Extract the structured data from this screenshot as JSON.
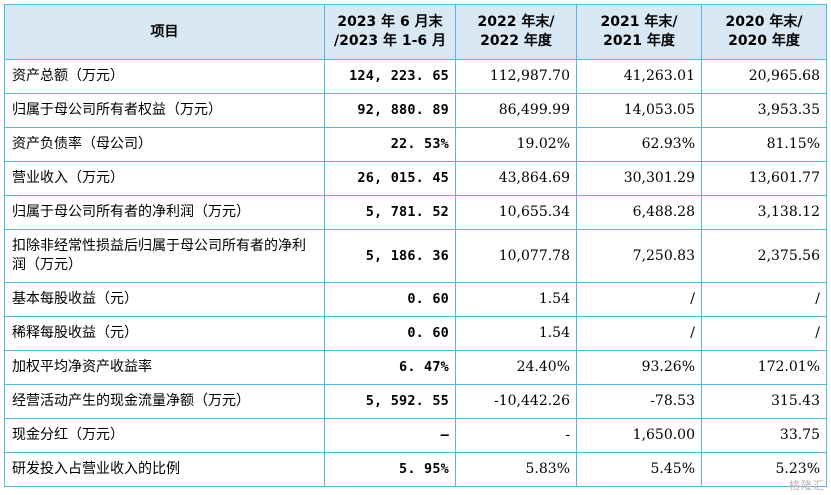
{
  "table": {
    "header": [
      "项目",
      "2023 年 6 月末/ /2023 年 1-6 月",
      "2022 年末/ 2022 年度",
      "2021 年末/ 2021 年度",
      "2020 年末/ 2020 年度"
    ],
    "header_lines": [
      [
        "项目"
      ],
      [
        "2023 年 6 月末",
        "/2023 年 1-6 月"
      ],
      [
        "2022 年末/",
        "2022 年度"
      ],
      [
        "2021 年末/",
        "2021 年度"
      ],
      [
        "2020 年末/",
        "2020 年度"
      ]
    ],
    "rows": [
      {
        "label": "资产总额（万元）",
        "values": [
          "124, 223. 65",
          "112,987.70",
          "41,263.01",
          "20,965.68"
        ]
      },
      {
        "label": "归属于母公司所有者权益（万元）",
        "values": [
          "92, 880. 89",
          "86,499.99",
          "14,053.05",
          "3,953.35"
        ]
      },
      {
        "label": "资产负债率（母公司）",
        "values": [
          "22. 53%",
          "19.02%",
          "62.93%",
          "81.15%"
        ]
      },
      {
        "label": "营业收入（万元）",
        "values": [
          "26, 015. 45",
          "43,864.69",
          "30,301.29",
          "13,601.77"
        ]
      },
      {
        "label": "归属于母公司所有者的净利润（万元）",
        "values": [
          "5, 781. 52",
          "10,655.34",
          "6,488.28",
          "3,138.12"
        ]
      },
      {
        "label": "扣除非经常性损益后归属于母公司所有者的净利润（万元）",
        "values": [
          "5, 186. 36",
          "10,077.78",
          "7,250.83",
          "2,375.56"
        ]
      },
      {
        "label": "基本每股收益（元）",
        "values": [
          "0. 60",
          "1.54",
          "/",
          "/"
        ]
      },
      {
        "label": "稀释每股收益（元）",
        "values": [
          "0. 60",
          "1.54",
          "/",
          "/"
        ]
      },
      {
        "label": "加权平均净资产收益率",
        "values": [
          "6. 47%",
          "24.40%",
          "93.26%",
          "172.01%"
        ]
      },
      {
        "label": "经营活动产生的现金流量净额（万元）",
        "values": [
          "5, 592. 55",
          "-10,442.26",
          "-78.53",
          "315.43"
        ]
      },
      {
        "label": "现金分红（万元）",
        "values": [
          "–",
          "-",
          "1,650.00",
          "33.75"
        ]
      },
      {
        "label": "研发投入占营业收入的比例",
        "values": [
          "5. 95%",
          "5.83%",
          "5.45%",
          "5.23%"
        ]
      }
    ]
  },
  "watermark": "格隆汇"
}
